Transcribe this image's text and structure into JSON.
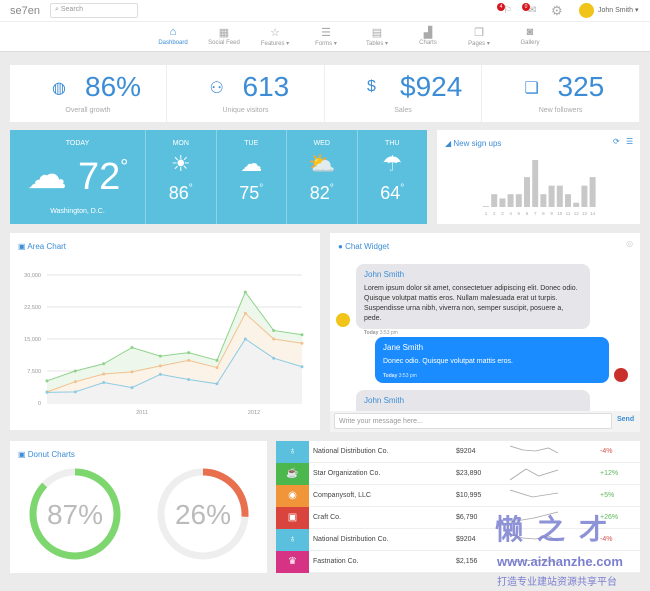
{
  "header": {
    "logo": "se7en",
    "search_placeholder": "Search",
    "notifications": "4",
    "messages": "0",
    "user": "John Smith"
  },
  "nav": [
    {
      "label": "Dashboard",
      "icon": "home-icon",
      "active": true
    },
    {
      "label": "Social Feed",
      "icon": "feed-icon"
    },
    {
      "label": "Features ▾",
      "icon": "star-icon"
    },
    {
      "label": "Forms ▾",
      "icon": "forms-icon"
    },
    {
      "label": "Tables ▾",
      "icon": "table-icon"
    },
    {
      "label": "Charts",
      "icon": "chart-icon"
    },
    {
      "label": "Pages ▾",
      "icon": "pages-icon"
    },
    {
      "label": "Gallery",
      "icon": "camera-icon"
    }
  ],
  "stats": [
    {
      "value": "86%",
      "label": "Overall growth",
      "icon": "globe-icon"
    },
    {
      "value": "613",
      "label": "Unique visitors",
      "icon": "users-icon"
    },
    {
      "value": "$924",
      "label": "Sales",
      "icon": "money-bag-icon"
    },
    {
      "value": "325",
      "label": "New followers",
      "icon": "chat-icon"
    }
  ],
  "weather": {
    "today": "TODAY",
    "temp": "72",
    "unit": "°",
    "location": "Washington, D.C.",
    "days": [
      {
        "day": "MON",
        "temp": "86",
        "unit": "°"
      },
      {
        "day": "TUE",
        "temp": "75",
        "unit": "°"
      },
      {
        "day": "WED",
        "temp": "82",
        "unit": "°"
      },
      {
        "day": "THU",
        "temp": "64",
        "unit": "°"
      }
    ]
  },
  "signups": {
    "title": "New sign ups",
    "labels": [
      "1",
      "2",
      "3",
      "4",
      "5",
      "6",
      "7",
      "8",
      "9",
      "10",
      "11",
      "12",
      "13",
      "14"
    ],
    "values": [
      0.2,
      3,
      2,
      3,
      3,
      7,
      11,
      3,
      5,
      5,
      3,
      1,
      5,
      7
    ]
  },
  "area": {
    "title": "Area Chart"
  },
  "chart_data": {
    "type": "area",
    "x_ticks": [
      "2011",
      "2012"
    ],
    "y_ticks": [
      "0",
      "7,500",
      "15,000",
      "22,500",
      "30,000"
    ],
    "ylim": [
      0,
      30000
    ],
    "grid": true,
    "series": [
      {
        "color": "#8ed38a",
        "values": [
          5200,
          7500,
          9200,
          13000,
          11000,
          11800,
          10000,
          26000,
          17000,
          16000
        ]
      },
      {
        "color": "#f2c18d",
        "values": [
          2600,
          5000,
          6800,
          7300,
          8700,
          10000,
          8300,
          21000,
          15000,
          14000
        ]
      },
      {
        "color": "#8ccbe3",
        "values": [
          2500,
          2600,
          4800,
          3600,
          6700,
          5500,
          4500,
          15000,
          10500,
          8500
        ]
      }
    ]
  },
  "chat": {
    "title": "Chat Widget",
    "messages": [
      {
        "who": "John Smith",
        "text": "Lorem ipsum dolor sit amet, consectetuer adipiscing elit. Donec odio. Quisque volutpat mattis eros. Nullam malesuada erat ut turpis. Suspendisse urna nibh, viverra non, semper suscipit, posuere a, pede.",
        "day": "Today",
        "time": "3:53 pm"
      },
      {
        "who": "Jane Smith",
        "text": "Donec odio. Quisque volutpat mattis eros.",
        "day": "Today",
        "time": "3:53 pm"
      },
      {
        "who": "John Smith"
      }
    ],
    "placeholder": "Write your message here...",
    "send": "Send"
  },
  "donut": {
    "title": "Donut Charts",
    "items": [
      {
        "value": "87%",
        "fraction": 0.87,
        "color": "#7ed66e"
      },
      {
        "value": "26%",
        "fraction": 0.26,
        "color": "#e8704f"
      }
    ]
  },
  "table": [
    {
      "name": "National Distribution Co.",
      "amount": "$9204",
      "change": "-4%",
      "color": "#5bc0de",
      "icon": "stethoscope-icon"
    },
    {
      "name": "Star Organization Co.",
      "amount": "$23,890",
      "change": "+12%",
      "color": "#4cb74c",
      "icon": "coffee-icon"
    },
    {
      "name": "Companysoft, LLC",
      "amount": "$10,995",
      "change": "+5%",
      "color": "#f0953a",
      "icon": "gamepad-icon"
    },
    {
      "name": "Craft Co.",
      "amount": "$6,790",
      "change": "+26%",
      "color": "#d9453d",
      "icon": "gift-icon"
    },
    {
      "name": "National Distribution Co.",
      "amount": "$9204",
      "change": "-4%",
      "color": "#5bc0de",
      "icon": "stethoscope-icon"
    },
    {
      "name": "Fastnation Co.",
      "amount": "$2,156",
      "change": "",
      "color": "#d63384",
      "icon": "trophy-icon"
    }
  ],
  "watermark": {
    "brand": "懒之才",
    "url": "www.aizhanzhe.com",
    "slogan": "打造专业建站资源共享平台"
  }
}
